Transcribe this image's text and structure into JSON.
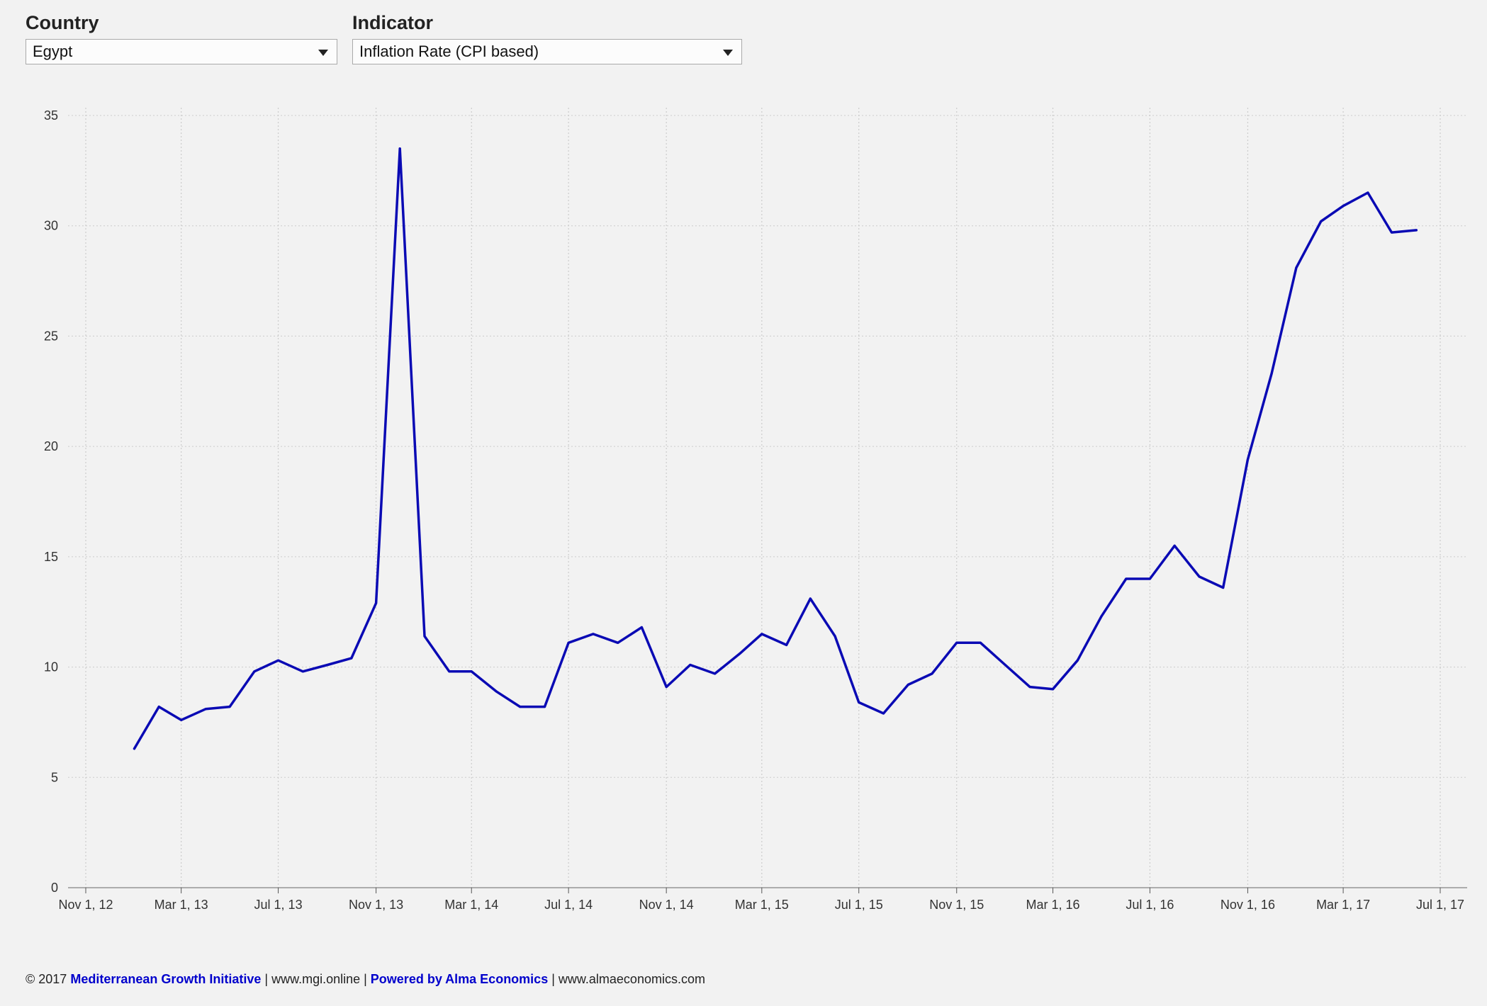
{
  "filters": {
    "country": {
      "label": "Country",
      "value": "Egypt"
    },
    "indicator": {
      "label": "Indicator",
      "value": "Inflation Rate (CPI based)"
    }
  },
  "colors": {
    "background": "#f2f2f2",
    "line": "#0a0ab4",
    "grid": "#cccccc",
    "link": "#0000cc"
  },
  "footer": {
    "copyright": "© 2017",
    "org_link": "Mediterranean Growth Initiative",
    "sep1": " | www.mgi.online | ",
    "powered_link": "Powered by Alma Economics",
    "sep2": " | www.almaeconomics.com"
  },
  "chart_data": {
    "type": "line",
    "title": "",
    "xlabel": "",
    "ylabel": "",
    "xlim": [
      "2012-11-01",
      "2017-07-01"
    ],
    "ylim": [
      0,
      35
    ],
    "y_ticks": [
      0,
      5,
      10,
      15,
      20,
      25,
      30,
      35
    ],
    "x_ticks": [
      {
        "date": "2012-11-01",
        "label": "Nov 1, 12"
      },
      {
        "date": "2013-03-01",
        "label": "Mar 1, 13"
      },
      {
        "date": "2013-07-01",
        "label": "Jul 1, 13"
      },
      {
        "date": "2013-11-01",
        "label": "Nov 1, 13"
      },
      {
        "date": "2014-03-01",
        "label": "Mar 1, 14"
      },
      {
        "date": "2014-07-01",
        "label": "Jul 1, 14"
      },
      {
        "date": "2014-11-01",
        "label": "Nov 1, 14"
      },
      {
        "date": "2015-03-01",
        "label": "Mar 1, 15"
      },
      {
        "date": "2015-07-01",
        "label": "Jul 1, 15"
      },
      {
        "date": "2015-11-01",
        "label": "Nov 1, 15"
      },
      {
        "date": "2016-03-01",
        "label": "Mar 1, 16"
      },
      {
        "date": "2016-07-01",
        "label": "Jul 1, 16"
      },
      {
        "date": "2016-11-01",
        "label": "Nov 1, 16"
      },
      {
        "date": "2017-03-01",
        "label": "Mar 1, 17"
      },
      {
        "date": "2017-07-01",
        "label": "Jul 1, 17"
      }
    ],
    "grid": true,
    "legend": "none",
    "series": [
      {
        "values": [
          {
            "x": "2013-01-01",
            "y": 6.3
          },
          {
            "x": "2013-02-01",
            "y": 8.2
          },
          {
            "x": "2013-03-01",
            "y": 7.6
          },
          {
            "x": "2013-04-01",
            "y": 8.1
          },
          {
            "x": "2013-05-01",
            "y": 8.2
          },
          {
            "x": "2013-06-01",
            "y": 9.8
          },
          {
            "x": "2013-07-01",
            "y": 10.3
          },
          {
            "x": "2013-08-01",
            "y": 9.8
          },
          {
            "x": "2013-09-01",
            "y": 10.1
          },
          {
            "x": "2013-10-01",
            "y": 10.4
          },
          {
            "x": "2013-11-01",
            "y": 12.9
          },
          {
            "x": "2013-12-01",
            "y": 33.5
          },
          {
            "x": "2014-01-01",
            "y": 11.4
          },
          {
            "x": "2014-02-01",
            "y": 9.8
          },
          {
            "x": "2014-03-01",
            "y": 9.8
          },
          {
            "x": "2014-04-01",
            "y": 8.9
          },
          {
            "x": "2014-05-01",
            "y": 8.2
          },
          {
            "x": "2014-06-01",
            "y": 8.2
          },
          {
            "x": "2014-07-01",
            "y": 11.1
          },
          {
            "x": "2014-08-01",
            "y": 11.5
          },
          {
            "x": "2014-09-01",
            "y": 11.1
          },
          {
            "x": "2014-10-01",
            "y": 11.8
          },
          {
            "x": "2014-11-01",
            "y": 9.1
          },
          {
            "x": "2014-12-01",
            "y": 10.1
          },
          {
            "x": "2015-01-01",
            "y": 9.7
          },
          {
            "x": "2015-02-01",
            "y": 10.6
          },
          {
            "x": "2015-03-01",
            "y": 11.5
          },
          {
            "x": "2015-04-01",
            "y": 11.0
          },
          {
            "x": "2015-05-01",
            "y": 13.1
          },
          {
            "x": "2015-06-01",
            "y": 11.4
          },
          {
            "x": "2015-07-01",
            "y": 8.4
          },
          {
            "x": "2015-08-01",
            "y": 7.9
          },
          {
            "x": "2015-09-01",
            "y": 9.2
          },
          {
            "x": "2015-10-01",
            "y": 9.7
          },
          {
            "x": "2015-11-01",
            "y": 11.1
          },
          {
            "x": "2015-12-01",
            "y": 11.1
          },
          {
            "x": "2016-01-01",
            "y": 10.1
          },
          {
            "x": "2016-02-01",
            "y": 9.1
          },
          {
            "x": "2016-03-01",
            "y": 9.0
          },
          {
            "x": "2016-04-01",
            "y": 10.3
          },
          {
            "x": "2016-05-01",
            "y": 12.3
          },
          {
            "x": "2016-06-01",
            "y": 14.0
          },
          {
            "x": "2016-07-01",
            "y": 14.0
          },
          {
            "x": "2016-08-01",
            "y": 15.5
          },
          {
            "x": "2016-09-01",
            "y": 14.1
          },
          {
            "x": "2016-10-01",
            "y": 13.6
          },
          {
            "x": "2016-11-01",
            "y": 19.4
          },
          {
            "x": "2016-12-01",
            "y": 23.3
          },
          {
            "x": "2017-01-01",
            "y": 28.1
          },
          {
            "x": "2017-02-01",
            "y": 30.2
          },
          {
            "x": "2017-03-01",
            "y": 30.9
          },
          {
            "x": "2017-04-01",
            "y": 31.5
          },
          {
            "x": "2017-05-01",
            "y": 29.7
          },
          {
            "x": "2017-06-01",
            "y": 29.8
          }
        ]
      }
    ]
  }
}
